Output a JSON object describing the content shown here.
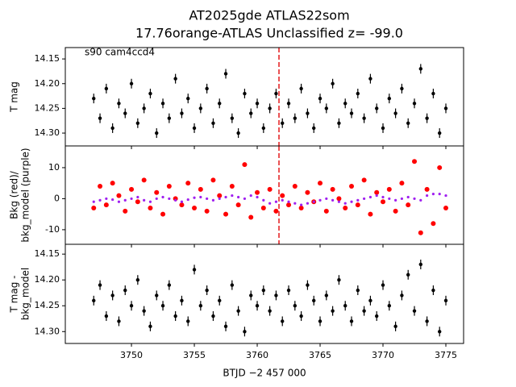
{
  "chart_data": [
    {
      "type": "scatter",
      "title": [
        "AT2025gde  ATLAS22som",
        "17.76orange-ATLAS Unclassified z= -99.0"
      ],
      "annotation": "s90 cam4ccd4",
      "ylabel": [
        "T mag"
      ],
      "vlines": [
        3761.73
      ],
      "vline_color": "#e41a1c",
      "xlim": [
        3744.74,
        3776.41
      ],
      "ylim": [
        14.326,
        14.127
      ],
      "xticks": [
        3750,
        3755,
        3760,
        3765,
        3770,
        3775
      ],
      "yticks": [
        14.15,
        {
          "value": 14.2,
          "label": "14.20"
        },
        14.25,
        {
          "value": 14.3,
          "label": "14.30"
        }
      ],
      "x": [
        3747,
        3747.5,
        3748,
        3748.5,
        3749,
        3749.5,
        3750,
        3750.5,
        3751,
        3751.5,
        3752,
        3752.5,
        3753,
        3753.5,
        3754,
        3754.5,
        3755,
        3755.5,
        3756,
        3756.5,
        3757,
        3757.5,
        3758,
        3758.5,
        3759,
        3759.5,
        3760,
        3760.5,
        3761,
        3761.5,
        3762,
        3762.5,
        3763,
        3763.5,
        3764,
        3764.5,
        3765,
        3765.5,
        3766,
        3766.5,
        3767,
        3767.5,
        3768,
        3768.5,
        3769,
        3769.5,
        3770,
        3770.5,
        3771,
        3771.5,
        3772,
        3772.5,
        3773,
        3773.5,
        3774,
        3774.5,
        3775
      ],
      "series": [
        {
          "name": "T mag",
          "color": "#000000",
          "values": [
            14.23,
            14.27,
            14.21,
            14.29,
            14.24,
            14.26,
            14.2,
            14.28,
            14.25,
            14.22,
            14.3,
            14.24,
            14.27,
            14.19,
            14.26,
            14.23,
            14.29,
            14.25,
            14.21,
            14.28,
            14.24,
            14.18,
            14.27,
            14.3,
            14.22,
            14.26,
            14.24,
            14.29,
            14.25,
            14.22,
            14.28,
            14.24,
            14.27,
            14.21,
            14.26,
            14.29,
            14.23,
            14.25,
            14.2,
            14.28,
            14.24,
            14.26,
            14.22,
            14.27,
            14.19,
            14.25,
            14.29,
            14.23,
            14.26,
            14.21,
            14.28,
            14.24,
            14.17,
            14.27,
            14.22,
            14.3,
            14.25
          ]
        }
      ]
    },
    {
      "type": "scatter",
      "ylabel": [
        "Bkg (red)/",
        "bkg_model (purple)"
      ],
      "vlines": [
        3761.73
      ],
      "vline_color": "#e41a1c",
      "xlim": [
        3744.74,
        3776.41
      ],
      "ylim": [
        -14.7,
        17.0
      ],
      "xticks": [
        3750,
        3755,
        3760,
        3765,
        3770,
        3775
      ],
      "yticks": [
        -10,
        0,
        10
      ],
      "x": [
        3747,
        3747.5,
        3748,
        3748.5,
        3749,
        3749.5,
        3750,
        3750.5,
        3751,
        3751.5,
        3752,
        3752.5,
        3753,
        3753.5,
        3754,
        3754.5,
        3755,
        3755.5,
        3756,
        3756.5,
        3757,
        3757.5,
        3758,
        3758.5,
        3759,
        3759.5,
        3760,
        3760.5,
        3761,
        3761.5,
        3762,
        3762.5,
        3763,
        3763.5,
        3764,
        3764.5,
        3765,
        3765.5,
        3766,
        3766.5,
        3767,
        3767.5,
        3768,
        3768.5,
        3769,
        3769.5,
        3770,
        3770.5,
        3771,
        3771.5,
        3772,
        3772.5,
        3773,
        3773.5,
        3774,
        3774.5,
        3775
      ],
      "series": [
        {
          "name": "Bkg",
          "color": "#ff0000",
          "size": 3,
          "values": [
            -3,
            4,
            -2,
            5,
            1,
            -4,
            3,
            -1,
            6,
            -3,
            2,
            -5,
            4,
            0,
            -2,
            5,
            -3,
            3,
            -4,
            6,
            1,
            -5,
            4,
            -2,
            11,
            -6,
            2,
            -3,
            3,
            -4,
            1,
            -2,
            4,
            -3,
            2,
            -1,
            5,
            -4,
            3,
            0,
            -3,
            4,
            -2,
            6,
            -5,
            2,
            -1,
            3,
            -4,
            5,
            -2,
            12,
            -11,
            3,
            -8,
            10,
            -3
          ]
        },
        {
          "name": "bkg_model",
          "color": "#a020f0",
          "size": 1.6,
          "values": [
            -1,
            -0.5,
            0,
            -0.3,
            -1,
            -0.5,
            0,
            0.5,
            -0.5,
            -1,
            0,
            0.5,
            0,
            -0.5,
            -1,
            -0.3,
            0.3,
            0.5,
            0,
            -0.5,
            0,
            0.5,
            1,
            0.5,
            0,
            1,
            0.5,
            -0.5,
            -1.5,
            -1,
            -0.5,
            -1,
            -1.5,
            -2,
            -1.5,
            -1,
            -0.5,
            0,
            -0.5,
            -1,
            -1.5,
            -1,
            -0.5,
            0,
            0.5,
            1,
            0.5,
            0,
            -0.5,
            0,
            0.5,
            0,
            -0.5,
            1,
            1.5,
            1.5,
            1
          ]
        }
      ]
    },
    {
      "type": "scatter",
      "ylabel": [
        "T mag -",
        "bkg_model"
      ],
      "xlabel": "BTJD −2 457 000",
      "xlim": [
        3744.74,
        3776.41
      ],
      "ylim": [
        14.323,
        14.131
      ],
      "xticks": [
        3750,
        3755,
        3760,
        3765,
        3770,
        3775
      ],
      "yticks": [
        14.15,
        {
          "value": 14.2,
          "label": "14.20"
        },
        14.25,
        {
          "value": 14.3,
          "label": "14.30"
        }
      ],
      "x": [
        3747,
        3747.5,
        3748,
        3748.5,
        3749,
        3749.5,
        3750,
        3750.5,
        3751,
        3751.5,
        3752,
        3752.5,
        3753,
        3753.5,
        3754,
        3754.5,
        3755,
        3755.5,
        3756,
        3756.5,
        3757,
        3757.5,
        3758,
        3758.5,
        3759,
        3759.5,
        3760,
        3760.5,
        3761,
        3761.5,
        3762,
        3762.5,
        3763,
        3763.5,
        3764,
        3764.5,
        3765,
        3765.5,
        3766,
        3766.5,
        3767,
        3767.5,
        3768,
        3768.5,
        3769,
        3769.5,
        3770,
        3770.5,
        3771,
        3771.5,
        3772,
        3772.5,
        3773,
        3773.5,
        3774,
        3774.5,
        3775
      ],
      "series": [
        {
          "name": "T mag - bkg_model",
          "color": "#000000",
          "values": [
            14.24,
            14.21,
            14.27,
            14.23,
            14.28,
            14.22,
            14.25,
            14.2,
            14.26,
            14.29,
            14.23,
            14.25,
            14.21,
            14.27,
            14.24,
            14.28,
            14.18,
            14.25,
            14.22,
            14.27,
            14.24,
            14.29,
            14.21,
            14.26,
            14.3,
            14.23,
            14.25,
            14.22,
            14.26,
            14.23,
            14.28,
            14.22,
            14.25,
            14.27,
            14.21,
            14.24,
            14.28,
            14.23,
            14.26,
            14.2,
            14.25,
            14.28,
            14.22,
            14.26,
            14.24,
            14.27,
            14.21,
            14.25,
            14.29,
            14.23,
            14.19,
            14.26,
            14.17,
            14.28,
            14.22,
            14.3,
            14.24
          ]
        }
      ]
    }
  ]
}
